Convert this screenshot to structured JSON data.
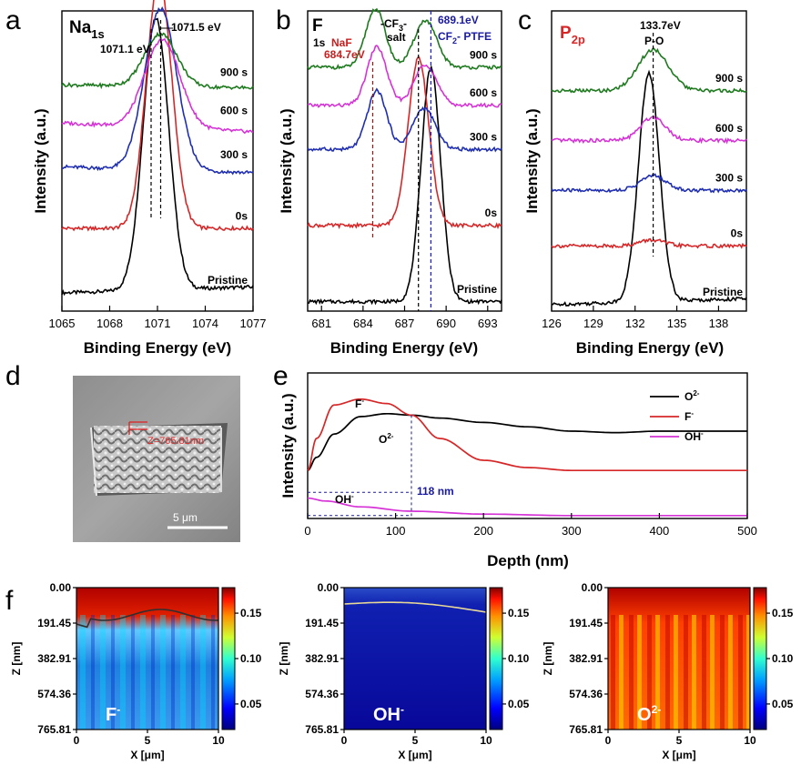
{
  "panels": {
    "a": "a",
    "b": "b",
    "c": "c",
    "d": "d",
    "e": "e",
    "f": "f"
  },
  "colors": {
    "black": "#000000",
    "red": "#d62728",
    "blue": "#1f2fb0",
    "magenta": "#d633d6",
    "green": "#1e7a1e",
    "darkred": "#8b1a1a",
    "navy": "#1a1aa0"
  },
  "chart_data": [
    {
      "panel": "a",
      "type": "line",
      "title": "Na1s",
      "title_main": "Na",
      "title_sub": "1s",
      "xlabel": "Binding Energy (eV)",
      "ylabel": "Intensity (a.u.)",
      "xlim": [
        1065,
        1077
      ],
      "xticks": [
        "1065",
        "1068",
        "1071",
        "1074",
        "1077"
      ],
      "annotations": {
        "left_peak": "1071.1 eV",
        "right_peak": "1071.5 eV"
      },
      "series": [
        {
          "name": "Pristine",
          "color": "#000000",
          "center": 1070.9,
          "width": 0.8,
          "amp": 0.93,
          "baseline": 0.05,
          "end": 0.07
        },
        {
          "name": "0s",
          "color": "#d62728",
          "center": 1071.1,
          "width": 0.8,
          "amp": 0.85,
          "baseline": 0.27,
          "end": 0.27
        },
        {
          "name": "300 s",
          "color": "#1f2fb0",
          "center": 1071.2,
          "width": 1.0,
          "amp": 0.55,
          "baseline": 0.48,
          "end": 0.46
        },
        {
          "name": "600 s",
          "color": "#d633d6",
          "center": 1071.3,
          "width": 1.1,
          "amp": 0.3,
          "baseline": 0.63,
          "end": 0.6
        },
        {
          "name": "900 s",
          "color": "#1e7a1e",
          "center": 1071.2,
          "width": 1.0,
          "amp": 0.18,
          "baseline": 0.76,
          "end": 0.75
        }
      ]
    },
    {
      "panel": "b",
      "type": "line",
      "title_main": "F",
      "title_sub": "1s",
      "xlabel": "Binding Energy (eV)",
      "ylabel": "Intensity (a.u.)",
      "xlim": [
        680,
        694
      ],
      "xticks": [
        "681",
        "684",
        "687",
        "690",
        "693"
      ],
      "annotations": {
        "naf": "NaF",
        "naf_ev": "684.7eV",
        "cf3": "-CF",
        "cf3_sub": "3",
        "cf3_end": "-",
        "salt": "salt",
        "ptfe_ev": "689.1eV",
        "ptfe": "CF",
        "ptfe_sub": "2",
        "ptfe_end": "- PTFE"
      },
      "series": [
        {
          "name": "Pristine",
          "color": "#000000",
          "peaks": [
            [
              688.9,
              0.7,
              0.8
            ]
          ],
          "baseline": 0.02
        },
        {
          "name": "0s",
          "color": "#d62728",
          "peaks": [
            [
              688.0,
              0.75,
              0.57
            ]
          ],
          "baseline": 0.28
        },
        {
          "name": "300 s",
          "color": "#1f2fb0",
          "peaks": [
            [
              685.0,
              0.7,
              0.2
            ],
            [
              688.4,
              0.8,
              0.14
            ]
          ],
          "baseline": 0.54
        },
        {
          "name": "600 s",
          "color": "#d633d6",
          "peaks": [
            [
              685.0,
              0.7,
              0.2
            ],
            [
              688.5,
              0.8,
              0.14
            ]
          ],
          "baseline": 0.69
        },
        {
          "name": "900 s",
          "color": "#1e7a1e",
          "peaks": [
            [
              684.9,
              0.7,
              0.2
            ],
            [
              688.5,
              0.8,
              0.16
            ]
          ],
          "baseline": 0.82
        }
      ]
    },
    {
      "panel": "c",
      "type": "line",
      "title_main": "P",
      "title_sub": "2p",
      "xlabel": "Binding Energy (eV)",
      "ylabel": "Intensity (a.u.)",
      "xlim": [
        126,
        140
      ],
      "xticks": [
        "126",
        "129",
        "132",
        "135",
        "138"
      ],
      "annotations": {
        "peak_ev": "133.7eV",
        "bond": "P-O"
      },
      "series": [
        {
          "name": "Pristine",
          "color": "#000000",
          "center": 133.0,
          "width": 0.75,
          "amp": 0.78,
          "baseline": 0.01,
          "end": 0.03
        },
        {
          "name": "0s",
          "color": "#d62728",
          "center": 133.2,
          "width": 0.9,
          "amp": 0.02,
          "baseline": 0.21,
          "end": 0.21
        },
        {
          "name": "300 s",
          "color": "#1f2fb0",
          "center": 133.3,
          "width": 0.9,
          "amp": 0.05,
          "baseline": 0.4,
          "end": 0.4
        },
        {
          "name": "600 s",
          "color": "#d633d6",
          "center": 133.3,
          "width": 0.9,
          "amp": 0.08,
          "baseline": 0.57,
          "end": 0.57
        },
        {
          "name": "900 s",
          "color": "#1e7a1e",
          "center": 133.3,
          "width": 1.1,
          "amp": 0.14,
          "baseline": 0.74,
          "end": 0.74
        }
      ]
    },
    {
      "panel": "e",
      "type": "line",
      "xlabel": "Depth (nm)",
      "ylabel": "Intensity (a.u.)",
      "xlim": [
        0,
        500
      ],
      "xticks": [
        "0",
        "100",
        "200",
        "300",
        "400",
        "500"
      ],
      "annotation_depth": "118 nm",
      "curve_labels": {
        "f": "F",
        "o": "O",
        "oh": "OH"
      },
      "legend": [
        {
          "name": "O",
          "sup": "2-",
          "color": "#000000"
        },
        {
          "name": "F",
          "sup": "-",
          "color": "#d62728"
        },
        {
          "name": "OH",
          "sup": "-",
          "color": "#d633d6"
        }
      ],
      "series": [
        {
          "name": "O2-",
          "color": "#000000",
          "x": [
            0,
            10,
            30,
            60,
            90,
            118,
            150,
            200,
            250,
            300,
            350,
            400,
            450,
            500
          ],
          "y": [
            0.33,
            0.42,
            0.58,
            0.7,
            0.72,
            0.71,
            0.69,
            0.66,
            0.63,
            0.6,
            0.59,
            0.6,
            0.6,
            0.6
          ]
        },
        {
          "name": "F-",
          "color": "#d62728",
          "x": [
            0,
            10,
            30,
            60,
            90,
            118,
            150,
            200,
            250,
            300,
            350,
            400,
            450,
            500
          ],
          "y": [
            0.33,
            0.55,
            0.78,
            0.82,
            0.79,
            0.71,
            0.55,
            0.4,
            0.35,
            0.33,
            0.33,
            0.33,
            0.33,
            0.33
          ]
        },
        {
          "name": "OH-",
          "color": "#d633d6",
          "x": [
            0,
            20,
            60,
            118,
            200,
            300,
            400,
            500
          ],
          "y": [
            0.14,
            0.12,
            0.08,
            0.05,
            0.03,
            0.02,
            0.02,
            0.02
          ]
        }
      ]
    }
  ],
  "sem": {
    "depth_label": "Z=765.81nm",
    "scale": "5 μm"
  },
  "depth_maps": {
    "ylabel": "Z [nm]",
    "xlabel": "X [μm]",
    "yticks": [
      "0.00",
      "191.45",
      "382.91",
      "574.36",
      "765.81"
    ],
    "xticks": [
      "0",
      "5",
      "10"
    ],
    "colorbar_ticks": [
      "0.15",
      "0.10",
      "0.05"
    ],
    "maps": [
      {
        "name": "F",
        "sup": "-"
      },
      {
        "name": "OH",
        "sup": "-"
      },
      {
        "name": "O",
        "sup": "2-"
      }
    ]
  }
}
